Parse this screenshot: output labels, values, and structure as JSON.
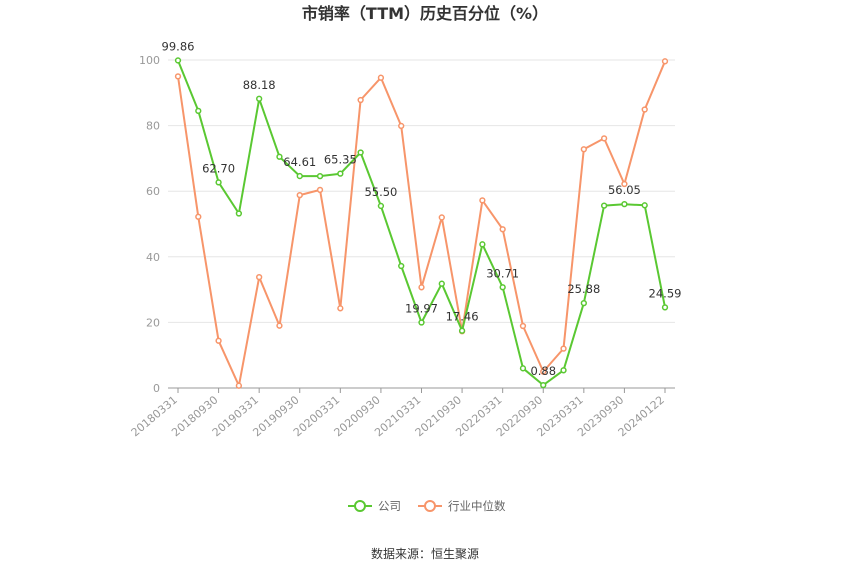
{
  "chart_data": {
    "type": "line",
    "title": "市销率（TTM）历史百分位（%）",
    "source": "数据来源：恒生聚源",
    "ylim": [
      0,
      100
    ],
    "yticks": [
      0,
      20,
      40,
      60,
      80,
      100
    ],
    "grid": true,
    "legend_position": "bottom",
    "x_tick_labels": [
      "20180331",
      "20180930",
      "20190331",
      "20190930",
      "20200331",
      "20200930",
      "20210331",
      "20210930",
      "20220331",
      "20220930",
      "20230331",
      "20230930",
      "20240122"
    ],
    "x": [
      "20180331",
      "20180630",
      "20180930",
      "20181231",
      "20190331",
      "20190630",
      "20190930",
      "20191231",
      "20200331",
      "20200630",
      "20200930",
      "20201231",
      "20210331",
      "20210630",
      "20210930",
      "20211231",
      "20220331",
      "20220630",
      "20220930",
      "20221231",
      "20230331",
      "20230630",
      "20230930",
      "20231231",
      "20240122"
    ],
    "series": [
      {
        "name": "公司",
        "color": "#5ac832",
        "values": [
          99.86,
          84.5,
          62.7,
          53.2,
          88.18,
          70.5,
          64.61,
          64.6,
          65.35,
          71.8,
          55.5,
          37.2,
          19.97,
          31.8,
          17.46,
          43.8,
          30.71,
          6.0,
          0.88,
          5.4,
          25.88,
          55.6,
          56.05,
          55.7,
          24.59
        ],
        "labels": {
          "0": "99.86",
          "2": "62.70",
          "4": "88.18",
          "6": "64.61",
          "8": "65.35",
          "10": "55.50",
          "12": "19.97",
          "14": "17.46",
          "16": "30.71",
          "18": "0.88",
          "20": "25.88",
          "22": "56.05",
          "24": "24.59"
        }
      },
      {
        "name": "行业中位数",
        "color": "#f7956a",
        "values": [
          95.0,
          52.2,
          14.4,
          0.7,
          33.8,
          19.0,
          58.8,
          60.4,
          24.3,
          87.8,
          94.6,
          79.9,
          30.7,
          52.0,
          17.3,
          57.2,
          48.4,
          18.9,
          5.0,
          12.0,
          72.8,
          76.1,
          62.2,
          84.9,
          99.6
        ]
      }
    ]
  }
}
